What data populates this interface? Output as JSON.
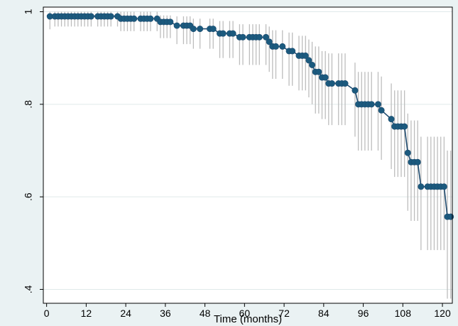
{
  "chart_data": {
    "type": "line",
    "title": "",
    "xlabel": "Time (months)",
    "ylabel": "",
    "xlim": [
      -1,
      123
    ],
    "ylim": [
      0.37,
      1.01
    ],
    "x_ticks": [
      0,
      12,
      24,
      36,
      48,
      60,
      72,
      84,
      96,
      108,
      120
    ],
    "y_ticks": [
      0.4,
      0.6,
      0.8,
      1.0
    ],
    "y_tick_labels": [
      ".4",
      ".6",
      ".8",
      "1"
    ],
    "grid": true,
    "legend": "none",
    "colors": {
      "outer_background": "#eaf2f3",
      "plot_background": "#ffffff",
      "gridline": "#dfe9ea",
      "line": "#1e4a6e",
      "marker": "#1b5a7e",
      "error_bar": "#bdbdbd"
    },
    "series": [
      {
        "x": [
          1,
          2.5,
          3.5,
          4.5,
          5.5,
          6.5,
          7.5,
          8.5,
          9.5,
          10.5,
          11.5,
          12.5,
          13.5,
          15.5,
          16.5,
          17.5,
          18.5,
          19.5,
          21.5,
          22.5,
          23.5,
          24.5,
          25.5,
          26.5,
          28.5,
          29.5,
          30.5,
          31.5,
          33.5,
          34.5,
          35.5,
          36.5,
          37.5,
          39.5,
          41.5,
          42.5,
          43.5,
          44.5,
          46.5,
          49.5,
          50.5,
          52.5,
          53.5,
          55.5,
          56.5,
          58.5,
          59.5,
          61.5,
          62.5,
          63.5,
          64.5,
          66.5,
          67.5,
          68.5,
          69.5,
          71.5,
          73.5,
          74.5,
          76.5,
          77.5,
          78.5,
          79.5,
          80.5,
          81.5,
          82.5,
          83.5,
          84.5,
          85.5,
          86.5,
          88.5,
          89.5,
          90.5,
          93.5,
          94.5,
          95.5,
          96.5,
          97.5,
          98.5,
          100.5,
          101.5,
          104.5,
          105.5,
          106.5,
          107.5,
          108.5,
          109.5,
          110.5,
          111.5,
          112.5,
          113.5,
          115.5,
          116.5,
          117.5,
          118.5,
          119.5,
          120.5,
          121.5,
          122.5
        ],
        "y": [
          0.99,
          0.99,
          0.99,
          0.99,
          0.99,
          0.99,
          0.99,
          0.99,
          0.99,
          0.99,
          0.99,
          0.99,
          0.99,
          0.99,
          0.99,
          0.99,
          0.99,
          0.99,
          0.99,
          0.985,
          0.985,
          0.985,
          0.985,
          0.985,
          0.985,
          0.985,
          0.985,
          0.985,
          0.985,
          0.978,
          0.978,
          0.978,
          0.978,
          0.97,
          0.97,
          0.97,
          0.97,
          0.963,
          0.963,
          0.963,
          0.963,
          0.953,
          0.953,
          0.953,
          0.953,
          0.945,
          0.945,
          0.945,
          0.945,
          0.945,
          0.945,
          0.945,
          0.935,
          0.925,
          0.925,
          0.925,
          0.915,
          0.915,
          0.905,
          0.905,
          0.905,
          0.895,
          0.885,
          0.87,
          0.87,
          0.858,
          0.858,
          0.845,
          0.845,
          0.845,
          0.845,
          0.845,
          0.83,
          0.8,
          0.8,
          0.8,
          0.8,
          0.8,
          0.8,
          0.787,
          0.768,
          0.752,
          0.752,
          0.752,
          0.752,
          0.695,
          0.675,
          0.675,
          0.675,
          0.622,
          0.622,
          0.622,
          0.622,
          0.622,
          0.622,
          0.622,
          0.557,
          0.557
        ],
        "lower": [
          0.962,
          0.968,
          0.968,
          0.968,
          0.968,
          0.968,
          0.968,
          0.968,
          0.968,
          0.968,
          0.968,
          0.968,
          0.968,
          0.968,
          0.968,
          0.968,
          0.968,
          0.968,
          0.968,
          0.958,
          0.958,
          0.958,
          0.958,
          0.958,
          0.958,
          0.958,
          0.958,
          0.958,
          0.958,
          0.943,
          0.943,
          0.943,
          0.943,
          0.93,
          0.93,
          0.93,
          0.93,
          0.92,
          0.92,
          0.92,
          0.92,
          0.9,
          0.9,
          0.9,
          0.9,
          0.885,
          0.885,
          0.885,
          0.885,
          0.885,
          0.885,
          0.885,
          0.87,
          0.855,
          0.855,
          0.855,
          0.84,
          0.84,
          0.83,
          0.83,
          0.83,
          0.815,
          0.8,
          0.78,
          0.78,
          0.768,
          0.768,
          0.755,
          0.755,
          0.755,
          0.755,
          0.755,
          0.73,
          0.7,
          0.7,
          0.7,
          0.7,
          0.7,
          0.7,
          0.68,
          0.66,
          0.643,
          0.643,
          0.643,
          0.643,
          0.57,
          0.548,
          0.548,
          0.548,
          0.485,
          0.485,
          0.485,
          0.485,
          0.485,
          0.485,
          0.485,
          0.38,
          0.38
        ],
        "upper": [
          1.0,
          1.0,
          1.0,
          1.0,
          1.0,
          1.0,
          1.0,
          1.0,
          1.0,
          1.0,
          1.0,
          1.0,
          1.0,
          1.0,
          1.0,
          1.0,
          1.0,
          1.0,
          1.0,
          1.0,
          1.0,
          1.0,
          1.0,
          1.0,
          1.0,
          1.0,
          1.0,
          1.0,
          1.0,
          0.992,
          0.992,
          0.992,
          0.992,
          0.99,
          0.99,
          0.99,
          0.99,
          0.985,
          0.985,
          0.985,
          0.985,
          0.98,
          0.98,
          0.98,
          0.98,
          0.973,
          0.973,
          0.973,
          0.973,
          0.973,
          0.973,
          0.973,
          0.968,
          0.96,
          0.96,
          0.96,
          0.955,
          0.955,
          0.948,
          0.948,
          0.948,
          0.94,
          0.935,
          0.925,
          0.925,
          0.915,
          0.915,
          0.91,
          0.91,
          0.91,
          0.91,
          0.91,
          0.89,
          0.87,
          0.87,
          0.87,
          0.87,
          0.87,
          0.87,
          0.86,
          0.845,
          0.83,
          0.83,
          0.83,
          0.83,
          0.78,
          0.765,
          0.765,
          0.765,
          0.73,
          0.73,
          0.73,
          0.73,
          0.73,
          0.73,
          0.73,
          0.7,
          0.7
        ]
      }
    ]
  }
}
